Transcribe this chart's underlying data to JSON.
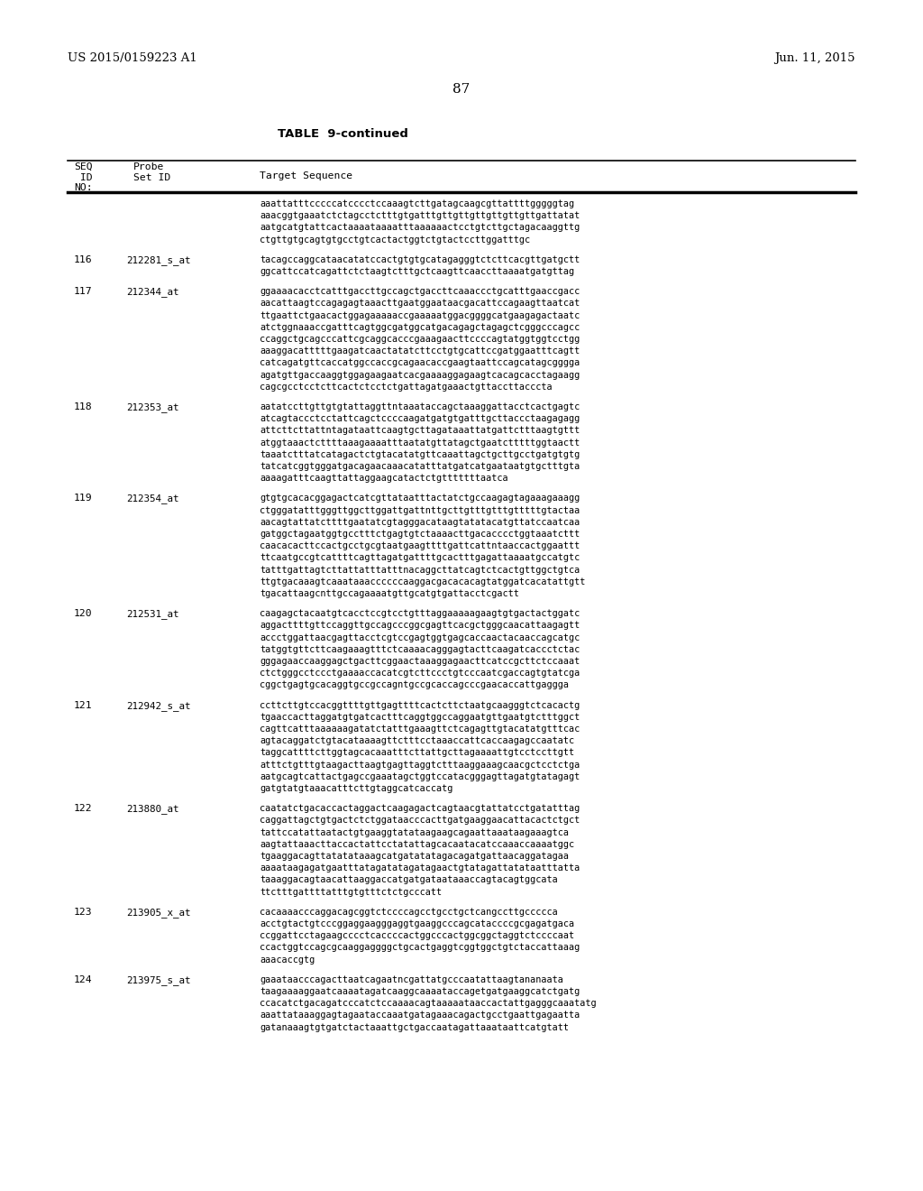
{
  "background_color": "#ffffff",
  "header_left": "US 2015/0159223 A1",
  "header_right": "Jun. 11, 2015",
  "page_number": "87",
  "table_title": "TABLE  9-continued",
  "entries": [
    {
      "seq_id": "",
      "probe_id": "",
      "sequence": "aaattatttcccccatcccctccaaagtcttgatagcaagcgttattttgggggtag\naaacggtgaaatctctagcctctttgtgatttgttgttgttgttgttgttgattatat\naatgcatgtattcactaaaataaaatttaaaaaactcctgtcttgctagacaaggttg\nctgttgtgcagtgtgcctgtcactactggtctgtactccttggatttgc"
    },
    {
      "seq_id": "116",
      "probe_id": "212281_s_at",
      "sequence": "tacagccaggcataacatatccactgtgtgcatagagggtctcttcacgttgatgctt\nggcattccatcagattctctaagtctttgctcaagttcaaccttaaaatgatgttag"
    },
    {
      "seq_id": "117",
      "probe_id": "212344_at",
      "sequence": "ggaaaacacctcatttgaccttgccagctgaccttcaaaccctgcatttgaaccgacc\naacattaagtccagagagtaaacttgaatggaataacgacattccagaagttaatcat\nttgaattctgaacactggagaaaaaccgaaaaatggacggggcatgaagagactaatc\natctggnaaaccgatttcagtggcgatggcatgacagagctagagctcgggcccagcc\nccaggctgcagcccattcgcaggcacccgaaagaacttccccagtatggtggtcctgg\naaaggacatttttgaagatcaactatatcttcctgtgcattccgatggaatttcagtt\ncatcagatgttcaccatggccaccgcagaacaccgaagtaattccagcatagcgggga\nagatgttgaccaaggtggagaagaatcacgaaaaggagaagtcacagcacctagaagg\ncagcgcctcctcttcactctcctctgattagatgaaactgttaccttacccta"
    },
    {
      "seq_id": "118",
      "probe_id": "212353_at",
      "sequence": "aatatccttgttgtgtattaggttntaaataccagctaaaggattacctcactgagtc\natcagtaccctcctattcagctccccaagatgatgtgatttgcttaccctaagagagg\nattcttcttattntagataattcaagtgcttagataaattatgattctttaagtgttt\natggtaaactcttttaaagaaaatttaatatgttatagctgaatctttttggtaactt\ntaaatctttatcatagactctgtacatatgttcaaattagctgcttgcctgatgtgtg\ntatcatcggtgggatgacagaacaaacatatttatgatcatgaataatgtgctttgta\naaaagatttcaagttattaggaagcatactctgtttttttaatca"
    },
    {
      "seq_id": "119",
      "probe_id": "212354_at",
      "sequence": "gtgtgcacacggagactcatcgttataatttactatctgccaagagtagaaagaaagg\nctgggatatttgggttggcttggattgattnttgcttgtttgtttgtttttgtactaa\naacagtattatcttttgaatatcgtagggacataagtatatacatgttatccaatcaa\ngatggctagaatggtgcctttctgagtgtctaaaacttgacacccctggtaaatcttt\ncaacacacttccactgcctgcgtaatgaagttttgattcattntaaccactggaattt\nttcaatgccgtcattttcagttagatgattttgcactttgagattaaaatgccatgtc\ntatttgattagtcttattatttatttnacaggcttatcagtctcactgttggctgtca\nttgtgacaaagtcaaataaaccccccaaggacgacacacagtatggatcacatattgtt\ntgacattaagcnttgccagaaaatgttgcatgtgattacctcgactt"
    },
    {
      "seq_id": "120",
      "probe_id": "212531_at",
      "sequence": "caagagctacaatgtcacctccgtcctgtttaggaaaaagaagtgtgactactggatc\naggacttttgttccaggttgccagcccggcgagttcacgctgggcaacattaagagtt\naccctggattaacgagttacctcgtccgagtggtgagcaccaactacaaccagcatgc\ntatggtgttcttcaagaaagtttctcaaaacagggagtacttcaagatcaccctctac\ngggagaaccaaggagctgacttcggaactaaaggagaacttcatccgcttctccaaat\nctctgggcctccctgaaaaccacatcgtcttccctgtcccaatcgaccagtgtatcga\ncggctgagtgcacaggtgccgccagntgccgcaccagcccgaacaccattgaggga"
    },
    {
      "seq_id": "121",
      "probe_id": "212942_s_at",
      "sequence": "ccttcttgtccacggttttgttgagttttcactcttctaatgcaagggtctcacactg\ntgaaccacttaggatgtgatcactttcaggtggccaggaatgttgaatgtctttggct\ncagttcatttaaaaaagatatctatttgaaagttctcagagttgtacatatgtttcac\nagtacaggatctgtacataaaagttctttcctaaaccattcaccaagagccaatatc\ntaggcattttcttggtagcacaaatttcttattgcttagaaaattgtcctccttgtt\natttctgtttgtaagacttaagtgagttaggtctttaaggaaagcaacgctcctctga\naatgcagtcattactgagccgaaatagctggtccatacgggagttagatgtatagagt\ngatgtatgtaaacatttcttgtaggcatcaccatg"
    },
    {
      "seq_id": "122",
      "probe_id": "213880_at",
      "sequence": "caatatctgacaccactaggactcaagagactcagtaacgtattatcctgatatttag\ncaggattagctgtgactctctggataacccacttgatgaaggaacattacactctgct\ntattccatattaatactgtgaaggtatataagaagcagaattaaataagaaagtca\naagtattaaacttaccactattcctatattagcacaatacatccaaaccaaaatggc\ntgaaggacagttatatataaagcatgatatatagacagatgattaacaggatagaa\naaaataagagatgaatttatagatatagatagaactgtatagattatataatttatta\ntaaaggacagtaacattaaggaccatgatgataataaaccagtacagtggcata\nttctttgattttatttgtgtttctctgcccatt"
    },
    {
      "seq_id": "123",
      "probe_id": "213905_x_at",
      "sequence": "cacaaaacccaggacagcggtctccccagcctgcctgctcangccttgccccca\nacctgtactgtcccggaggaagggaggtgaaggcccagcataccccgcgagatgaca\nccggattcctagaagcccctcaccccactggcccactggcggctaggtctccccaat\nccactggtccagcgcaaggaggggctgcactgaggtcggtggctgtctaccattaaag\naaacaccgtg"
    },
    {
      "seq_id": "124",
      "probe_id": "213975_s_at",
      "sequence": "gaaataacccagacttaatcagaatncgattatgcccaatattaagtananaata\ntaagaaaaggaatcaaaatagatcaaggcaaaataccagetgatgaaggcatctgatg\nccacatctgacagatcccatctccaaaacagtaaaaataaccactattgagggcaaatatg\naaattataaaggagtagaataccaaatgatagaaacagactgcctgaattgagaatta\ngatanaaagtgtgatctactaaattgctgaccaatagattaaataattcatgtatt"
    }
  ]
}
